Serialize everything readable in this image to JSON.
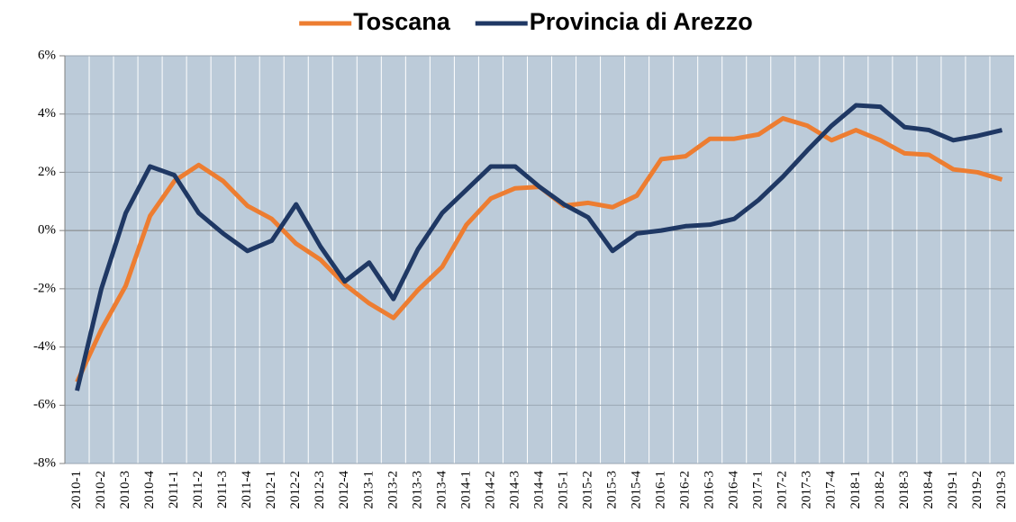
{
  "chart_data": {
    "type": "line",
    "categories": [
      "2010-1",
      "2010-2",
      "2010-3",
      "2010-4",
      "2011-1",
      "2011-2",
      "2011-3",
      "2011-4",
      "2012-1",
      "2012-2",
      "2012-3",
      "2012-4",
      "2013-1",
      "2013-2",
      "2013-3",
      "2013-4",
      "2014-1",
      "2014-2",
      "2014-3",
      "2014-4",
      "2015-1",
      "2015-2",
      "2015-3",
      "2015-4",
      "2016-1",
      "2016-2",
      "2016-3",
      "2016-4",
      "2017-1",
      "2017-2",
      "2017-3",
      "2017-4",
      "2018-1",
      "2018-2",
      "2018-3",
      "2018-4",
      "2019-1",
      "2019-2",
      "2019-3"
    ],
    "series": [
      {
        "name": "Toscana",
        "color": "#ed7d31",
        "values": [
          -5.2,
          -3.4,
          -1.9,
          0.5,
          1.7,
          2.25,
          1.7,
          0.85,
          0.4,
          -0.45,
          -1.0,
          -1.85,
          -2.5,
          -3.0,
          -2.05,
          -1.25,
          0.2,
          1.1,
          1.45,
          1.5,
          0.85,
          0.95,
          0.8,
          1.2,
          2.45,
          2.55,
          3.15,
          3.15,
          3.3,
          3.85,
          3.6,
          3.1,
          3.45,
          3.1,
          2.65,
          2.6,
          2.1,
          2.0,
          1.75
        ]
      },
      {
        "name": "Provincia di Arezzo",
        "color": "#1f3864",
        "values": [
          -5.5,
          -2.0,
          0.6,
          2.2,
          1.9,
          0.6,
          -0.1,
          -0.7,
          -0.35,
          0.9,
          -0.55,
          -1.75,
          -1.1,
          -2.35,
          -0.65,
          0.6,
          1.4,
          2.2,
          2.2,
          1.5,
          0.9,
          0.45,
          -0.7,
          -0.1,
          0.0,
          0.15,
          0.2,
          0.4,
          1.05,
          1.85,
          2.75,
          3.6,
          4.3,
          4.25,
          3.55,
          3.45,
          3.1,
          3.25,
          3.45
        ]
      }
    ],
    "ylim": [
      -8,
      6
    ],
    "yticks": [
      {
        "value": -8,
        "label": "-8%"
      },
      {
        "value": -6,
        "label": "-6%"
      },
      {
        "value": -4,
        "label": "-4%"
      },
      {
        "value": -2,
        "label": "-2%"
      },
      {
        "value": 0,
        "label": "0%"
      },
      {
        "value": 2,
        "label": "2%"
      },
      {
        "value": 4,
        "label": "4%"
      },
      {
        "value": 6,
        "label": "6%"
      }
    ],
    "grid": true,
    "legend": "top"
  }
}
